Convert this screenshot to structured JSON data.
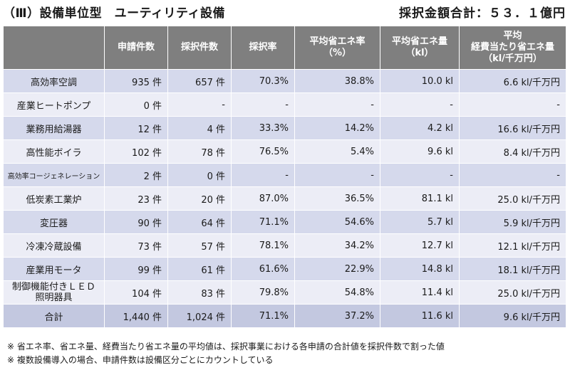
{
  "title": "（Ⅲ）設備単位型　ユーティリティ設備",
  "total_amount": "採択金額合計：５３．１億円",
  "headers": [
    "",
    "申請件数",
    "採択件数",
    "採択率",
    "平均省エネ率\n（%）",
    "平均省エネ量\n（kl）",
    "平均\n経費当たり省エネ量\n（kl/千万円）"
  ],
  "rows": [
    {
      "name": "高効率空調",
      "applied": "935 件",
      "adopted": "657 件",
      "rate": "70.3%",
      "save_rate": "38.8%",
      "save_amount": "10.0 kl",
      "per_cost": "6.6 kl/千万円"
    },
    {
      "name": "産業ヒートポンプ",
      "applied": "0 件",
      "adopted": "-",
      "rate": "-",
      "save_rate": "-",
      "save_amount": "-",
      "per_cost": "-"
    },
    {
      "name": "業務用給湯器",
      "applied": "12 件",
      "adopted": "4 件",
      "rate": "33.3%",
      "save_rate": "14.2%",
      "save_amount": "4.2 kl",
      "per_cost": "16.6 kl/千万円"
    },
    {
      "name": "高性能ボイラ",
      "applied": "102 件",
      "adopted": "78 件",
      "rate": "76.5%",
      "save_rate": "5.4%",
      "save_amount": "9.6 kl",
      "per_cost": "8.4 kl/千万円"
    },
    {
      "name": "高効率コージェネレーション",
      "applied": "2 件",
      "adopted": "0 件",
      "rate": "-",
      "save_rate": "-",
      "save_amount": "-",
      "per_cost": "-"
    },
    {
      "name": "低炭素工業炉",
      "applied": "23 件",
      "adopted": "20 件",
      "rate": "87.0%",
      "save_rate": "36.5%",
      "save_amount": "81.1 kl",
      "per_cost": "25.0 kl/千万円"
    },
    {
      "name": "変圧器",
      "applied": "90 件",
      "adopted": "64 件",
      "rate": "71.1%",
      "save_rate": "54.6%",
      "save_amount": "5.7 kl",
      "per_cost": "5.9 kl/千万円"
    },
    {
      "name": "冷凍冷蔵設備",
      "applied": "73 件",
      "adopted": "57 件",
      "rate": "78.1%",
      "save_rate": "34.2%",
      "save_amount": "12.7 kl",
      "per_cost": "12.1 kl/千万円"
    },
    {
      "name": "産業用モータ",
      "applied": "99 件",
      "adopted": "61 件",
      "rate": "61.6%",
      "save_rate": "22.9%",
      "save_amount": "14.8 kl",
      "per_cost": "18.1 kl/千万円"
    },
    {
      "name": "制御機能付きＬＥＤ\n照明器具",
      "applied": "104 件",
      "adopted": "83 件",
      "rate": "79.8%",
      "save_rate": "54.8%",
      "save_amount": "11.4 kl",
      "per_cost": "25.0 kl/千万円"
    }
  ],
  "total": {
    "name": "合計",
    "applied": "1,440 件",
    "adopted": "1,024 件",
    "rate": "71.1%",
    "save_rate": "37.2%",
    "save_amount": "11.6 kl",
    "per_cost": "9.6 kl/千万円"
  },
  "notes": [
    "※ 省エネ率、省エネ量、経費当たり省エネ量の平均値は、採択事業における各申請の合計値を採択件数で割った値",
    "※ 複数設備導入の場合、申請件数は設備区分ごとにカウントしている"
  ]
}
